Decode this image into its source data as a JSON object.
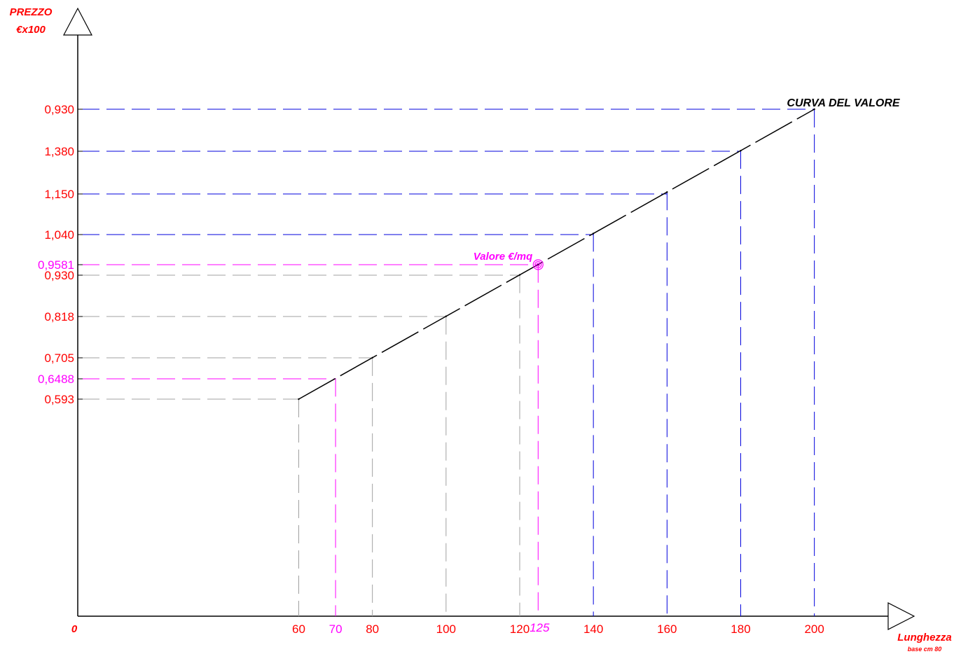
{
  "chart_data": {
    "type": "line",
    "title": "CURVA DEL VALORE",
    "ylabel_line1": "PREZZO",
    "ylabel_line2": "€x100",
    "xlabel": "Lunghezza",
    "xlabel_sub": "base cm 80",
    "origin_label": "0",
    "series": [
      {
        "points": [
          {
            "x": 60,
            "y": 0.593
          },
          {
            "x": 80,
            "y": 0.705
          },
          {
            "x": 100,
            "y": 0.818
          },
          {
            "x": 120,
            "y": 0.93
          },
          {
            "x": 140,
            "y": 1.04
          },
          {
            "x": 160,
            "y": 1.15
          },
          {
            "x": 180,
            "y": 1.38
          },
          {
            "x": 200,
            "y": 0.93
          }
        ]
      }
    ],
    "reference_points": [
      {
        "x": 60,
        "x_label": "60",
        "y_label": "0,593",
        "color": "#a0a0a0"
      },
      {
        "x": 70,
        "x_label": "70",
        "y_label": "0,6488",
        "color": "#ff00ff"
      },
      {
        "x": 80,
        "x_label": "80",
        "y_label": "0,705",
        "color": "#a0a0a0"
      },
      {
        "x": 100,
        "x_label": "100",
        "y_label": "0,818",
        "color": "#a0a0a0"
      },
      {
        "x": 120,
        "x_label": "120",
        "y_label": "0,930",
        "color": "#a0a0a0"
      },
      {
        "x": 125,
        "x_label": "125",
        "y_label": "0,9581",
        "color": "#ff00ff"
      },
      {
        "x": 140,
        "x_label": "140",
        "y_label": "1,040",
        "color": "#0000dd"
      },
      {
        "x": 160,
        "x_label": "160",
        "y_label": "1,150",
        "color": "#0000dd"
      },
      {
        "x": 180,
        "x_label": "180",
        "y_label": "1,380",
        "color": "#0000dd"
      },
      {
        "x": 200,
        "x_label": "200",
        "y_label": "0,930",
        "color": "#0000dd"
      }
    ],
    "highlight": {
      "x": 125,
      "y": 0.9581,
      "label": "Valore €/mq",
      "color": "#ff00ff"
    },
    "grid": false,
    "legend": "none"
  }
}
